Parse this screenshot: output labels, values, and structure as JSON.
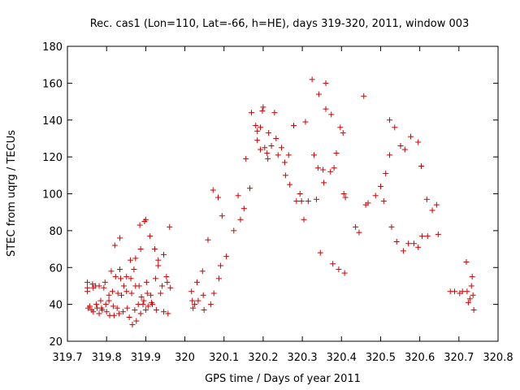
{
  "chart_data": {
    "type": "scatter",
    "title": "Rec. cas1 (Lon=110, Lat=-66, h=HE), days 319-320, 2011, window 003",
    "xlabel": "GPS time / Days of year 2011",
    "ylabel": "STEC from uqrg / TECUs",
    "xlim": [
      319.7,
      320.8
    ],
    "ylim": [
      20,
      180
    ],
    "xticks": [
      319.7,
      319.8,
      319.9,
      320,
      320.1,
      320.2,
      320.3,
      320.4,
      320.5,
      320.6,
      320.7,
      320.8
    ],
    "xtick_labels": [
      "319.7",
      "319.8",
      "319.9",
      "320",
      "320.1",
      "320.2",
      "320.3",
      "320.4",
      "320.5",
      "320.6",
      "320.7",
      "320.8"
    ],
    "yticks": [
      20,
      40,
      60,
      80,
      100,
      120,
      140,
      160,
      180
    ],
    "ytick_labels": [
      "20",
      "40",
      "60",
      "80",
      "100",
      "120",
      "140",
      "160",
      "180"
    ],
    "grid": false,
    "legend": "none",
    "marker": "plus",
    "color": "#cc0000",
    "series": [
      {
        "points": [
          [
            319.751,
            52
          ],
          [
            319.751,
            49
          ],
          [
            319.751,
            47
          ],
          [
            319.753,
            38
          ],
          [
            319.757,
            39
          ],
          [
            319.762,
            37
          ],
          [
            319.764,
            51
          ],
          [
            319.766,
            49
          ],
          [
            319.766,
            36
          ],
          [
            319.772,
            50
          ],
          [
            319.774,
            40
          ],
          [
            319.776,
            38
          ],
          [
            319.781,
            50
          ],
          [
            319.781,
            35
          ],
          [
            319.785,
            42
          ],
          [
            319.787,
            38
          ],
          [
            319.789,
            37
          ],
          [
            319.793,
            49
          ],
          [
            319.796,
            52
          ],
          [
            319.798,
            40
          ],
          [
            319.8,
            36
          ],
          [
            319.806,
            45
          ],
          [
            319.806,
            42
          ],
          [
            319.808,
            34
          ],
          [
            319.812,
            58
          ],
          [
            319.815,
            47
          ],
          [
            319.817,
            39
          ],
          [
            319.819,
            34
          ],
          [
            319.821,
            72
          ],
          [
            319.823,
            55
          ],
          [
            319.827,
            38
          ],
          [
            319.829,
            46
          ],
          [
            319.832,
            35
          ],
          [
            319.834,
            76
          ],
          [
            319.834,
            59
          ],
          [
            319.836,
            54
          ],
          [
            319.838,
            45
          ],
          [
            319.842,
            36
          ],
          [
            319.844,
            50
          ],
          [
            319.851,
            55
          ],
          [
            319.851,
            47
          ],
          [
            319.853,
            38
          ],
          [
            319.858,
            33
          ],
          [
            319.861,
            64
          ],
          [
            319.862,
            54
          ],
          [
            319.864,
            46
          ],
          [
            319.866,
            29
          ],
          [
            319.87,
            59
          ],
          [
            319.872,
            37
          ],
          [
            319.874,
            65
          ],
          [
            319.874,
            50
          ],
          [
            319.876,
            31
          ],
          [
            319.881,
            40
          ],
          [
            319.883,
            50
          ],
          [
            319.885,
            83
          ],
          [
            319.887,
            70
          ],
          [
            319.887,
            35
          ],
          [
            319.889,
            44
          ],
          [
            319.893,
            40
          ],
          [
            319.895,
            42
          ],
          [
            319.897,
            85
          ],
          [
            319.9,
            86
          ],
          [
            319.9,
            37
          ],
          [
            319.902,
            52
          ],
          [
            319.904,
            46
          ],
          [
            319.906,
            39
          ],
          [
            319.911,
            77
          ],
          [
            319.913,
            45
          ],
          [
            319.915,
            41
          ],
          [
            319.917,
            40
          ],
          [
            319.923,
            70
          ],
          [
            319.925,
            54
          ],
          [
            319.927,
            37
          ],
          [
            319.932,
            64
          ],
          [
            319.932,
            61
          ],
          [
            319.938,
            46
          ],
          [
            319.942,
            50
          ],
          [
            319.946,
            67
          ],
          [
            319.946,
            36
          ],
          [
            319.953,
            55
          ],
          [
            319.955,
            52
          ],
          [
            319.957,
            35
          ],
          [
            319.961,
            82
          ],
          [
            319.963,
            49
          ],
          [
            320.017,
            47
          ],
          [
            320.019,
            42
          ],
          [
            320.021,
            38
          ],
          [
            320.025,
            40
          ],
          [
            320.031,
            52
          ],
          [
            320.034,
            42
          ],
          [
            320.045,
            58
          ],
          [
            320.047,
            45
          ],
          [
            320.049,
            37
          ],
          [
            320.059,
            75
          ],
          [
            320.066,
            40
          ],
          [
            320.072,
            102
          ],
          [
            320.074,
            46
          ],
          [
            320.085,
            98
          ],
          [
            320.087,
            54
          ],
          [
            320.091,
            61
          ],
          [
            320.095,
            88
          ],
          [
            320.106,
            66
          ],
          [
            320.125,
            80
          ],
          [
            320.136,
            99
          ],
          [
            320.142,
            86
          ],
          [
            320.151,
            92
          ],
          [
            320.156,
            119
          ],
          [
            320.166,
            103
          ],
          [
            320.17,
            144
          ],
          [
            320.181,
            137
          ],
          [
            320.185,
            134
          ],
          [
            320.185,
            129
          ],
          [
            320.193,
            136
          ],
          [
            320.193,
            124
          ],
          [
            320.198,
            145
          ],
          [
            320.2,
            147
          ],
          [
            320.204,
            125
          ],
          [
            320.21,
            122
          ],
          [
            320.212,
            119
          ],
          [
            320.214,
            133
          ],
          [
            320.221,
            126
          ],
          [
            320.229,
            144
          ],
          [
            320.233,
            130
          ],
          [
            320.238,
            121
          ],
          [
            320.247,
            125
          ],
          [
            320.255,
            117
          ],
          [
            320.257,
            110
          ],
          [
            320.265,
            121
          ],
          [
            320.268,
            105
          ],
          [
            320.278,
            137
          ],
          [
            320.285,
            96
          ],
          [
            320.294,
            100
          ],
          [
            320.298,
            96
          ],
          [
            320.304,
            86
          ],
          [
            320.308,
            139
          ],
          [
            320.315,
            96
          ],
          [
            320.325,
            162
          ],
          [
            320.33,
            121
          ],
          [
            320.336,
            97
          ],
          [
            320.34,
            114
          ],
          [
            320.342,
            154
          ],
          [
            320.346,
            68
          ],
          [
            320.353,
            113
          ],
          [
            320.355,
            106
          ],
          [
            320.36,
            146
          ],
          [
            320.36,
            160
          ],
          [
            320.372,
            112
          ],
          [
            320.374,
            143
          ],
          [
            320.378,
            62
          ],
          [
            320.381,
            114
          ],
          [
            320.387,
            122
          ],
          [
            320.393,
            59
          ],
          [
            320.397,
            136
          ],
          [
            320.404,
            133
          ],
          [
            320.406,
            100
          ],
          [
            320.408,
            57
          ],
          [
            320.41,
            98
          ],
          [
            320.436,
            82
          ],
          [
            320.445,
            79
          ],
          [
            320.457,
            153
          ],
          [
            320.462,
            94
          ],
          [
            320.468,
            95
          ],
          [
            320.487,
            99
          ],
          [
            320.5,
            104
          ],
          [
            320.508,
            96
          ],
          [
            320.513,
            111
          ],
          [
            320.523,
            140
          ],
          [
            320.523,
            121
          ],
          [
            320.528,
            82
          ],
          [
            320.536,
            136
          ],
          [
            320.541,
            74
          ],
          [
            320.551,
            126
          ],
          [
            320.558,
            69
          ],
          [
            320.562,
            124
          ],
          [
            320.571,
            73
          ],
          [
            320.577,
            131
          ],
          [
            320.585,
            73
          ],
          [
            320.596,
            71
          ],
          [
            320.596,
            128
          ],
          [
            320.604,
            115
          ],
          [
            320.606,
            77
          ],
          [
            320.618,
            97
          ],
          [
            320.62,
            77
          ],
          [
            320.632,
            91
          ],
          [
            320.643,
            94
          ],
          [
            320.647,
            78
          ],
          [
            320.678,
            47
          ],
          [
            320.689,
            47
          ],
          [
            320.702,
            46
          ],
          [
            320.709,
            47
          ],
          [
            320.719,
            63
          ],
          [
            320.721,
            47
          ],
          [
            320.724,
            41
          ],
          [
            320.728,
            43
          ],
          [
            320.732,
            50
          ],
          [
            320.734,
            55
          ],
          [
            320.736,
            45
          ],
          [
            320.738,
            37
          ]
        ]
      }
    ]
  }
}
